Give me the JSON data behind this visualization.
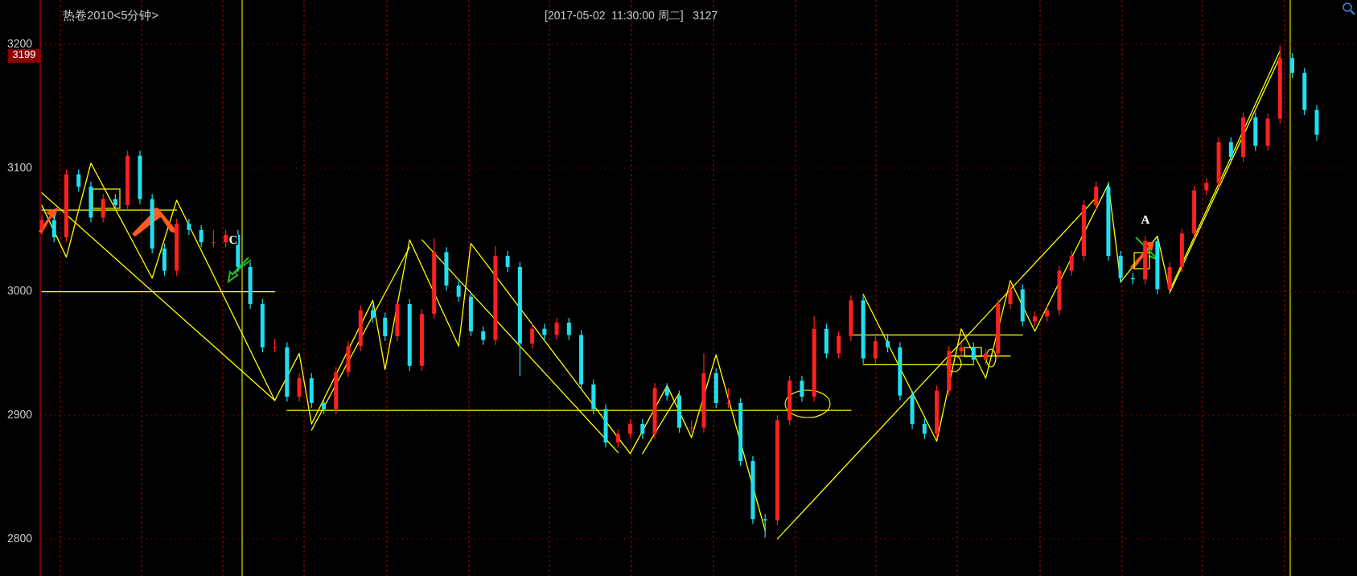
{
  "chart_data": {
    "type": "candlestick",
    "title": "热卷2010<5分钟>",
    "subtitle": "[2017-05-02  11:30:00 周二]   3127",
    "annotations": [
      "3199",
      "C",
      "A"
    ],
    "categories": [
      null,
      null,
      null,
      null,
      null,
      null,
      null,
      null,
      null,
      null,
      null,
      null,
      null,
      null,
      null,
      null,
      null,
      null,
      null,
      null,
      null,
      null,
      null,
      null,
      null,
      null,
      null,
      null,
      null,
      null,
      null,
      null,
      null,
      null,
      null,
      null,
      null,
      null,
      null,
      null,
      null,
      null,
      null,
      null,
      null,
      null,
      null,
      null,
      null,
      null,
      null,
      null,
      null,
      null,
      null,
      null,
      null,
      null,
      null,
      null,
      null,
      null,
      null,
      null,
      null,
      null,
      null,
      null,
      null,
      null,
      null,
      null,
      null,
      null,
      null,
      null,
      null,
      null,
      null,
      null,
      null,
      null,
      null,
      null,
      null,
      null,
      null,
      null,
      null,
      null,
      null,
      null,
      null,
      null,
      null,
      null,
      null,
      null,
      null,
      null,
      null,
      null,
      null,
      null,
      null
    ],
    "ohlc": [
      [
        3050,
        3062,
        3046,
        3058
      ],
      [
        3058,
        3062,
        3040,
        3044
      ],
      [
        3044,
        3099,
        3040,
        3095
      ],
      [
        3095,
        3099,
        3081,
        3085
      ],
      [
        3085,
        3089,
        3056,
        3060
      ],
      [
        3060,
        3079,
        3056,
        3075
      ],
      [
        3075,
        3079,
        3066,
        3070
      ],
      [
        3070,
        3114,
        3066,
        3110
      ],
      [
        3110,
        3114,
        3071,
        3075
      ],
      [
        3075,
        3079,
        3031,
        3035
      ],
      [
        3035,
        3039,
        3013,
        3017
      ],
      [
        3017,
        3059,
        3013,
        3055
      ],
      [
        3055,
        3059,
        3046,
        3050
      ],
      [
        3050,
        3054,
        3036,
        3040
      ],
      [
        3040,
        3050,
        3036,
        3040
      ],
      [
        3040,
        3050,
        3036,
        3046
      ],
      [
        3046,
        3050,
        3016,
        3020
      ],
      [
        3020,
        3024,
        2986,
        2990
      ],
      [
        2990,
        2994,
        2951,
        2955
      ],
      [
        2955,
        2962,
        2951,
        2955
      ],
      [
        2955,
        2959,
        2911,
        2915
      ],
      [
        2915,
        2934,
        2911,
        2930
      ],
      [
        2930,
        2934,
        2906,
        2910
      ],
      [
        2910,
        2914,
        2901,
        2905
      ],
      [
        2905,
        2939,
        2901,
        2935
      ],
      [
        2935,
        2960,
        2931,
        2956
      ],
      [
        2956,
        2989,
        2952,
        2985
      ],
      [
        2985,
        2989,
        2975,
        2979
      ],
      [
        2979,
        2983,
        2960,
        2964
      ],
      [
        2964,
        2994,
        2960,
        2990
      ],
      [
        2990,
        2994,
        2936,
        2940
      ],
      [
        2940,
        2986,
        2936,
        2982
      ],
      [
        2982,
        3043,
        2978,
        3032
      ],
      [
        3032,
        3036,
        3001,
        3005
      ],
      [
        3005,
        3009,
        2992,
        2996
      ],
      [
        2996,
        3000,
        2964,
        2968
      ],
      [
        2968,
        2972,
        2957,
        2961
      ],
      [
        2961,
        3037,
        2957,
        3029
      ],
      [
        3029,
        3033,
        3016,
        3020
      ],
      [
        3020,
        3024,
        2932,
        2958
      ],
      [
        2958,
        2974,
        2954,
        2970
      ],
      [
        2970,
        2974,
        2961,
        2965
      ],
      [
        2965,
        2979,
        2961,
        2975
      ],
      [
        2975,
        2979,
        2961,
        2965
      ],
      [
        2965,
        2969,
        2921,
        2925
      ],
      [
        2925,
        2929,
        2901,
        2905
      ],
      [
        2905,
        2909,
        2874,
        2878
      ],
      [
        2878,
        2889,
        2874,
        2885
      ],
      [
        2885,
        2897,
        2881,
        2893
      ],
      [
        2893,
        2897,
        2881,
        2885
      ],
      [
        2885,
        2926,
        2881,
        2922
      ],
      [
        2922,
        2926,
        2912,
        2916
      ],
      [
        2916,
        2920,
        2886,
        2890
      ],
      [
        2890,
        2896,
        2886,
        2890
      ],
      [
        2890,
        2950,
        2886,
        2934
      ],
      [
        2934,
        2938,
        2906,
        2910
      ],
      [
        2910,
        2922,
        2906,
        2910
      ],
      [
        2910,
        2914,
        2859,
        2863
      ],
      [
        2863,
        2867,
        2812,
        2816
      ],
      [
        2816,
        2820,
        2801,
        2815
      ],
      [
        2815,
        2900,
        2811,
        2896
      ],
      [
        2896,
        2932,
        2892,
        2928
      ],
      [
        2928,
        2932,
        2911,
        2915
      ],
      [
        2915,
        2980,
        2911,
        2970
      ],
      [
        2970,
        2974,
        2946,
        2950
      ],
      [
        2950,
        2968,
        2946,
        2964
      ],
      [
        2964,
        2997,
        2960,
        2993
      ],
      [
        2993,
        2997,
        2942,
        2946
      ],
      [
        2946,
        2964,
        2942,
        2960
      ],
      [
        2960,
        2966,
        2951,
        2955
      ],
      [
        2955,
        2959,
        2912,
        2916
      ],
      [
        2916,
        2920,
        2889,
        2893
      ],
      [
        2893,
        2897,
        2881,
        2885
      ],
      [
        2885,
        2924,
        2881,
        2920
      ],
      [
        2920,
        2956,
        2916,
        2952
      ],
      [
        2952,
        2959,
        2948,
        2955
      ],
      [
        2955,
        2959,
        2941,
        2945
      ],
      [
        2945,
        2954,
        2941,
        2950
      ],
      [
        2950,
        2994,
        2946,
        2990
      ],
      [
        2990,
        3006,
        2986,
        3002
      ],
      [
        3002,
        3006,
        2972,
        2976
      ],
      [
        2976,
        2984,
        2972,
        2980
      ],
      [
        2980,
        2989,
        2976,
        2985
      ],
      [
        2985,
        3021,
        2981,
        3017
      ],
      [
        3017,
        3033,
        3013,
        3029
      ],
      [
        3029,
        3074,
        3025,
        3070
      ],
      [
        3070,
        3089,
        3066,
        3085
      ],
      [
        3085,
        3089,
        3025,
        3029
      ],
      [
        3029,
        3033,
        3007,
        3011
      ],
      [
        3011,
        3015,
        3006,
        3010
      ],
      [
        3010,
        3045,
        3006,
        3041
      ],
      [
        3041,
        3045,
        2998,
        3002
      ],
      [
        3002,
        3024,
        2998,
        3020
      ],
      [
        3020,
        3051,
        3016,
        3047
      ],
      [
        3047,
        3086,
        3043,
        3082
      ],
      [
        3082,
        3092,
        3078,
        3088
      ],
      [
        3088,
        3125,
        3084,
        3121
      ],
      [
        3121,
        3125,
        3105,
        3109
      ],
      [
        3109,
        3145,
        3105,
        3141
      ],
      [
        3141,
        3145,
        3114,
        3118
      ],
      [
        3118,
        3144,
        3114,
        3140
      ],
      [
        3140,
        3199,
        3136,
        3189
      ],
      [
        3189,
        3193,
        3173,
        3177
      ],
      [
        3177,
        3181,
        3143,
        3147
      ],
      [
        3147,
        3151,
        3122,
        3127
      ]
    ],
    "series": [
      {
        "type": "line",
        "color": "#ffff00",
        "values": [
          3080,
          null,
          null,
          null,
          null,
          null,
          null,
          null,
          null,
          null,
          null,
          null,
          null,
          null,
          null,
          null,
          null,
          null,
          null,
          2912,
          null,
          null,
          null,
          null,
          null,
          null,
          null,
          null,
          null,
          null,
          null,
          null,
          null,
          null,
          null,
          null,
          null,
          null,
          null,
          null,
          null,
          null,
          null,
          null,
          null,
          null,
          null,
          null,
          null,
          null,
          null,
          null,
          null,
          null,
          null,
          null,
          null,
          null,
          null,
          null,
          null,
          null,
          null,
          null,
          null,
          null,
          null,
          null,
          null,
          null,
          null,
          null,
          null,
          null,
          null,
          null,
          null,
          null,
          null,
          null,
          null,
          null,
          null,
          null,
          null,
          null,
          null,
          null,
          null,
          null,
          null,
          null,
          null,
          null,
          null,
          null,
          null,
          null,
          null,
          null,
          null,
          null,
          null,
          null,
          null
        ]
      },
      {
        "type": "line",
        "color": "#ffff00",
        "values": [
          3070,
          null,
          3028,
          null,
          3104,
          null,
          null,
          null,
          null,
          3011,
          null,
          3074,
          null,
          null,
          null,
          null,
          null,
          null,
          null,
          2912,
          null,
          2950,
          2893,
          null,
          null,
          null,
          null,
          2993,
          2937,
          null,
          3042,
          null,
          null,
          null,
          2956,
          3039,
          null,
          null,
          null,
          null,
          null,
          null,
          null,
          null,
          null,
          null,
          null,
          null,
          2869,
          null,
          null,
          2924,
          null,
          2882,
          null,
          2949,
          null,
          null,
          null,
          2807,
          null,
          null,
          null,
          null,
          null,
          null,
          null,
          null,
          null,
          null,
          null,
          null,
          null,
          null,
          null,
          null,
          null,
          null,
          null,
          null,
          null,
          null,
          null,
          null,
          null,
          null,
          null,
          null,
          null,
          null,
          null,
          null,
          null,
          null,
          null,
          null,
          null,
          null,
          null,
          null,
          null,
          null,
          null,
          null,
          null
        ]
      },
      {
        "type": "line",
        "color": "#ffff00",
        "values": [
          null,
          null,
          null,
          null,
          null,
          null,
          null,
          null,
          null,
          null,
          null,
          null,
          null,
          null,
          null,
          null,
          null,
          null,
          null,
          null,
          null,
          null,
          2888,
          null,
          null,
          null,
          null,
          null,
          null,
          null,
          3036,
          null,
          null,
          null,
          null,
          null,
          null,
          null,
          null,
          null,
          null,
          null,
          null,
          null,
          null,
          null,
          null,
          null,
          null,
          null,
          null,
          null,
          null,
          null,
          null,
          null,
          null,
          null,
          null,
          null,
          null,
          null,
          null,
          null,
          null,
          null,
          null,
          null,
          null,
          null,
          null,
          null,
          null,
          null,
          null,
          null,
          null,
          null,
          null,
          null,
          null,
          null,
          null,
          null,
          null,
          null,
          null,
          null,
          null,
          null,
          null,
          null,
          null,
          null,
          null,
          null,
          null,
          null,
          null,
          null,
          null,
          null,
          null,
          null,
          null
        ]
      },
      {
        "type": "line",
        "color": "#ffff00",
        "values": [
          null,
          null,
          null,
          null,
          null,
          null,
          null,
          null,
          null,
          null,
          null,
          null,
          null,
          null,
          null,
          null,
          null,
          null,
          null,
          null,
          null,
          null,
          null,
          null,
          null,
          null,
          null,
          null,
          null,
          null,
          null,
          3042,
          null,
          null,
          null,
          null,
          null,
          null,
          null,
          null,
          null,
          null,
          null,
          null,
          null,
          null,
          null,
          2870,
          null,
          null,
          null,
          null,
          null,
          null,
          null,
          null,
          null,
          null,
          null,
          null,
          null,
          null,
          null,
          null,
          null,
          null,
          null,
          null,
          null,
          null,
          null,
          null,
          null,
          null,
          null,
          null,
          null,
          null,
          null,
          null,
          null,
          null,
          null,
          null,
          null,
          null,
          null,
          null,
          null,
          null,
          null,
          null,
          null,
          null,
          null,
          null,
          null,
          null,
          null,
          null,
          null,
          null,
          null,
          null,
          null
        ]
      },
      {
        "type": "line",
        "color": "#ffff00",
        "values": [
          null,
          null,
          null,
          null,
          null,
          null,
          null,
          null,
          null,
          null,
          null,
          null,
          null,
          null,
          null,
          null,
          null,
          null,
          null,
          null,
          null,
          null,
          null,
          null,
          null,
          null,
          null,
          null,
          null,
          null,
          null,
          null,
          null,
          null,
          null,
          null,
          null,
          null,
          null,
          null,
          null,
          null,
          null,
          null,
          null,
          null,
          null,
          null,
          null,
          2869,
          null,
          null,
          2918,
          null,
          null,
          null,
          null,
          null,
          null,
          null,
          null,
          null,
          null,
          null,
          null,
          null,
          null,
          null,
          null,
          null,
          null,
          null,
          null,
          null,
          null,
          null,
          null,
          null,
          null,
          null,
          null,
          null,
          null,
          null,
          null,
          null,
          null,
          null,
          null,
          null,
          null,
          null,
          null,
          null,
          null,
          null,
          null,
          null,
          null,
          null,
          null,
          null,
          null,
          null,
          null
        ]
      },
      {
        "type": "line",
        "color": "#ffff00",
        "values": [
          null,
          null,
          null,
          null,
          null,
          null,
          null,
          null,
          null,
          null,
          null,
          null,
          null,
          null,
          null,
          null,
          null,
          null,
          null,
          null,
          null,
          null,
          null,
          null,
          null,
          null,
          null,
          null,
          null,
          null,
          null,
          null,
          null,
          null,
          null,
          null,
          null,
          null,
          null,
          null,
          null,
          null,
          null,
          null,
          null,
          null,
          null,
          null,
          null,
          null,
          null,
          null,
          null,
          null,
          null,
          null,
          null,
          null,
          null,
          null,
          2800,
          null,
          null,
          null,
          null,
          null,
          null,
          null,
          null,
          null,
          null,
          null,
          null,
          null,
          null,
          null,
          null,
          null,
          null,
          null,
          null,
          null,
          null,
          null,
          null,
          null,
          3076,
          null,
          null,
          null,
          null,
          null,
          null,
          null,
          null,
          null,
          null,
          null,
          null,
          null,
          null,
          null,
          null,
          null,
          null
        ]
      },
      {
        "type": "line",
        "color": "#ffff00",
        "values": [
          null,
          null,
          null,
          null,
          null,
          null,
          null,
          null,
          null,
          null,
          null,
          null,
          null,
          null,
          null,
          null,
          null,
          null,
          null,
          null,
          null,
          null,
          null,
          null,
          null,
          null,
          null,
          null,
          null,
          null,
          null,
          null,
          null,
          null,
          null,
          null,
          null,
          null,
          null,
          null,
          null,
          null,
          null,
          null,
          null,
          null,
          null,
          null,
          null,
          null,
          null,
          null,
          null,
          null,
          null,
          null,
          null,
          null,
          null,
          null,
          null,
          null,
          null,
          null,
          null,
          null,
          null,
          2998,
          null,
          null,
          null,
          null,
          null,
          2879,
          null,
          2970,
          null,
          2930,
          null,
          3009,
          null,
          2968,
          null,
          null,
          null,
          null,
          null,
          3087,
          3008,
          null,
          null,
          3045,
          3001,
          null,
          null,
          null,
          null,
          null,
          null,
          null,
          null,
          3195,
          null,
          null,
          null
        ]
      },
      {
        "type": "line",
        "color": "#ffff00",
        "values": [
          null,
          null,
          null,
          null,
          null,
          null,
          null,
          null,
          null,
          null,
          null,
          null,
          null,
          null,
          null,
          null,
          null,
          null,
          null,
          null,
          null,
          null,
          null,
          null,
          null,
          null,
          null,
          null,
          null,
          null,
          null,
          null,
          null,
          null,
          null,
          null,
          null,
          null,
          null,
          null,
          null,
          null,
          null,
          null,
          null,
          null,
          null,
          null,
          null,
          null,
          null,
          null,
          null,
          null,
          null,
          null,
          null,
          null,
          null,
          null,
          null,
          null,
          null,
          null,
          null,
          null,
          null,
          null,
          null,
          null,
          null,
          null,
          null,
          null,
          null,
          null,
          null,
          null,
          null,
          null,
          null,
          null,
          null,
          null,
          null,
          null,
          null,
          null,
          null,
          null,
          null,
          null,
          2999,
          null,
          null,
          null,
          null,
          null,
          null,
          null,
          null,
          3190,
          null,
          null,
          null
        ]
      },
      {
        "type": "line",
        "color": "#ffff00",
        "values": [
          3066,
          null,
          null,
          null,
          null,
          null,
          null,
          null,
          null,
          null,
          null,
          3066,
          null,
          null,
          null,
          null,
          null,
          null,
          null,
          null,
          null,
          null,
          null,
          null,
          null,
          null,
          null,
          null,
          null,
          null,
          null,
          null,
          null,
          null,
          null,
          null,
          null,
          null,
          null,
          null,
          null,
          null,
          null,
          null,
          null,
          null,
          null,
          null,
          null,
          null,
          null,
          null,
          null,
          null,
          null,
          null,
          null,
          null,
          null,
          null,
          null,
          null,
          null,
          null,
          null,
          null,
          null,
          null,
          null,
          null,
          null,
          null,
          null,
          null,
          null,
          null,
          null,
          null,
          null,
          null,
          null,
          null,
          null,
          null,
          null,
          null,
          null,
          null,
          null,
          null,
          null,
          null,
          null,
          null,
          null,
          null,
          null,
          null,
          null,
          null,
          null,
          null,
          null,
          null,
          null
        ]
      },
      {
        "type": "line",
        "color": "#ffff00",
        "values": [
          3000,
          null,
          null,
          null,
          null,
          null,
          null,
          null,
          null,
          null,
          null,
          null,
          null,
          null,
          null,
          null,
          null,
          null,
          null,
          3000,
          null,
          null,
          null,
          null,
          null,
          null,
          null,
          null,
          null,
          null,
          null,
          null,
          null,
          null,
          null,
          null,
          null,
          null,
          null,
          null,
          null,
          null,
          null,
          null,
          null,
          null,
          null,
          null,
          null,
          null,
          null,
          null,
          null,
          null,
          null,
          null,
          null,
          null,
          null,
          null,
          null,
          null,
          null,
          null,
          null,
          null,
          null,
          null,
          null,
          null,
          null,
          null,
          null,
          null,
          null,
          null,
          null,
          null,
          null,
          null,
          null,
          null,
          null,
          null,
          null,
          null,
          null,
          null,
          null,
          null,
          null,
          null,
          null,
          null,
          null,
          null,
          null,
          null,
          null,
          null,
          null,
          null,
          null,
          null,
          null
        ]
      },
      {
        "type": "line",
        "color": "#ffff00",
        "values": [
          null,
          null,
          null,
          null,
          null,
          null,
          null,
          null,
          null,
          null,
          null,
          null,
          null,
          null,
          null,
          null,
          null,
          null,
          null,
          null,
          2904,
          null,
          null,
          null,
          null,
          null,
          null,
          null,
          null,
          null,
          null,
          null,
          null,
          null,
          null,
          null,
          null,
          null,
          null,
          null,
          null,
          null,
          null,
          null,
          null,
          null,
          null,
          null,
          null,
          null,
          null,
          null,
          null,
          null,
          null,
          null,
          null,
          null,
          null,
          null,
          null,
          null,
          null,
          null,
          null,
          null,
          2904,
          null,
          null,
          null,
          null,
          null,
          null,
          null,
          null,
          null,
          null,
          null,
          null,
          null,
          null,
          null,
          null,
          null,
          null,
          null,
          null,
          null,
          null,
          null,
          null,
          null,
          null,
          null,
          null,
          null,
          null,
          null,
          null,
          null,
          null,
          null,
          null,
          null,
          null
        ]
      },
      {
        "type": "line",
        "color": "#ffff00",
        "values": [
          null,
          null,
          null,
          null,
          null,
          null,
          null,
          null,
          null,
          null,
          null,
          null,
          null,
          null,
          null,
          null,
          null,
          null,
          null,
          null,
          null,
          null,
          null,
          null,
          null,
          null,
          null,
          null,
          null,
          null,
          null,
          null,
          null,
          null,
          null,
          null,
          null,
          null,
          null,
          null,
          null,
          null,
          null,
          null,
          null,
          null,
          null,
          null,
          null,
          null,
          null,
          null,
          null,
          null,
          null,
          null,
          null,
          null,
          null,
          null,
          null,
          null,
          null,
          null,
          null,
          null,
          2965,
          null,
          null,
          null,
          null,
          null,
          null,
          null,
          null,
          null,
          null,
          null,
          null,
          null,
          2965,
          null,
          null,
          null,
          null,
          null,
          null,
          null,
          null,
          null,
          null,
          null,
          null,
          null,
          null,
          null,
          null,
          null,
          null,
          null,
          null,
          null,
          null,
          null,
          null
        ]
      },
      {
        "type": "line",
        "color": "#ffff00",
        "values": [
          null,
          null,
          null,
          null,
          null,
          null,
          null,
          null,
          null,
          null,
          null,
          null,
          null,
          null,
          null,
          null,
          null,
          null,
          null,
          null,
          null,
          null,
          null,
          null,
          null,
          null,
          null,
          null,
          null,
          null,
          null,
          null,
          null,
          null,
          null,
          null,
          null,
          null,
          null,
          null,
          null,
          null,
          null,
          null,
          null,
          null,
          null,
          null,
          null,
          null,
          null,
          null,
          null,
          null,
          null,
          null,
          null,
          null,
          null,
          null,
          null,
          null,
          null,
          null,
          null,
          null,
          null,
          2941,
          null,
          null,
          null,
          null,
          null,
          null,
          null,
          null,
          2941,
          null,
          null,
          null,
          null,
          null,
          null,
          null,
          null,
          null,
          null,
          null,
          null,
          null,
          null,
          null,
          null,
          null,
          null,
          null,
          null,
          null,
          null,
          null,
          null,
          null,
          null,
          null,
          null
        ]
      },
      {
        "type": "line",
        "color": "#ffff00",
        "values": [
          null,
          null,
          null,
          null,
          null,
          null,
          null,
          null,
          null,
          null,
          null,
          null,
          null,
          null,
          null,
          null,
          null,
          null,
          null,
          null,
          null,
          null,
          null,
          null,
          null,
          null,
          null,
          null,
          null,
          null,
          null,
          null,
          null,
          null,
          null,
          null,
          null,
          null,
          null,
          null,
          null,
          null,
          null,
          null,
          null,
          null,
          null,
          null,
          null,
          null,
          null,
          null,
          null,
          null,
          null,
          null,
          null,
          null,
          null,
          null,
          null,
          null,
          null,
          null,
          null,
          null,
          null,
          null,
          null,
          null,
          null,
          null,
          null,
          null,
          2948,
          null,
          null,
          null,
          null,
          2948,
          null,
          null,
          null,
          null,
          null,
          null,
          null,
          null,
          null,
          null,
          null,
          null,
          null,
          null,
          null,
          null,
          null,
          null,
          null,
          null,
          null,
          null,
          null,
          null,
          null
        ]
      }
    ],
    "ylim": [
      2770,
      3236
    ],
    "yticks": [
      2800,
      2900,
      3000,
      3100,
      3200
    ],
    "grid": "y"
  }
}
